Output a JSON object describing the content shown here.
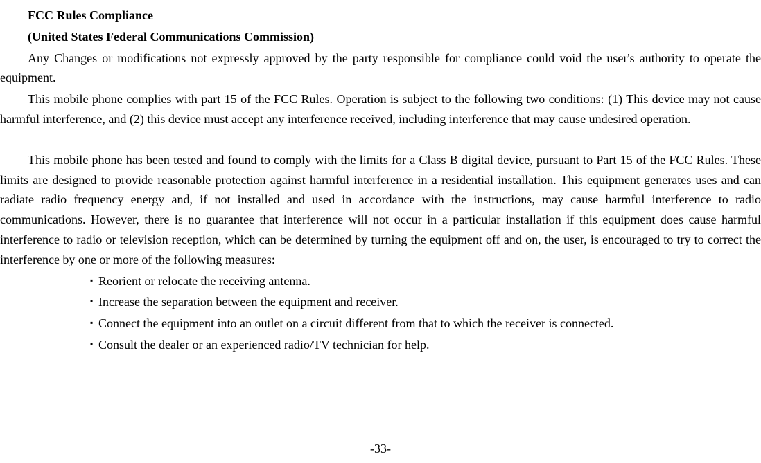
{
  "heading1": "FCC Rules Compliance",
  "heading2": "(United States Federal Communications Commission)",
  "paragraph1": "Any Changes or modifications not expressly approved by the party responsible for compliance could void the user's authority to operate the equipment.",
  "paragraph2": "This mobile phone complies with part 15 of the FCC Rules. Operation is subject to the following two conditions: (1) This device may not cause harmful interference, and (2) this device must accept any interference received, including interference that may cause undesired operation.",
  "paragraph3": "This mobile phone has been tested and found to comply with the limits for a Class B digital device, pursuant to Part 15 of the FCC Rules. These limits are designed to provide reasonable protection against harmful interference in a residential installation. This equipment generates uses and can radiate radio frequency energy and, if not installed and used in accordance with the instructions, may cause harmful interference to radio communications. However, there is no guarantee that interference will not occur in a particular installation if this equipment does cause harmful interference to radio or television reception, which can be determined by turning the equipment off and on, the user, is encouraged to try to correct the interference by one or more of the following measures:",
  "bullets": {
    "b1": "Reorient or relocate the receiving antenna.",
    "b2": "Increase the separation between the equipment and receiver.",
    "b3": "Connect the equipment into an outlet on a circuit different from that to which the receiver is connected.",
    "b4": "Consult the dealer or an experienced radio/TV technician for help."
  },
  "pageNumber": "-33-"
}
